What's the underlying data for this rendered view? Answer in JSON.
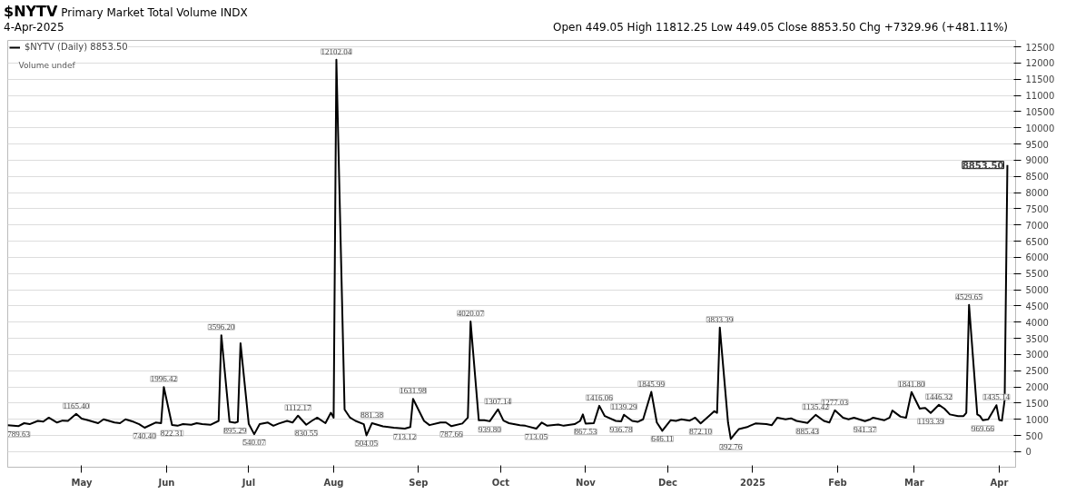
{
  "chart_data": {
    "type": "line",
    "title": "$NYTV",
    "subtitle": "Primary Market Total Volume INDX",
    "annotations": [
      "4-Apr-2025",
      "Volume undef",
      "Open 449.05  High 11812.25  Low 449.05  Close 8853.50  Chg +7329.96 (+481.11%)"
    ],
    "x": [
      "2024-04-04",
      "2024-04-08",
      "2024-04-10",
      "2024-04-12",
      "2024-04-15",
      "2024-04-17",
      "2024-04-19",
      "2024-04-22",
      "2024-04-24",
      "2024-04-26",
      "2024-04-29",
      "2024-05-01",
      "2024-05-03",
      "2024-05-07",
      "2024-05-09",
      "2024-05-13",
      "2024-05-15",
      "2024-05-17",
      "2024-05-20",
      "2024-05-22",
      "2024-05-24",
      "2024-05-28",
      "2024-05-30",
      "2024-05-31",
      "2024-06-03",
      "2024-06-05",
      "2024-06-07",
      "2024-06-10",
      "2024-06-12",
      "2024-06-14",
      "2024-06-17",
      "2024-06-20",
      "2024-06-21",
      "2024-06-24",
      "2024-06-26",
      "2024-06-27",
      "2024-06-28",
      "2024-07-01",
      "2024-07-03",
      "2024-07-05",
      "2024-07-08",
      "2024-07-10",
      "2024-07-12",
      "2024-07-15",
      "2024-07-17",
      "2024-07-19",
      "2024-07-22",
      "2024-07-24",
      "2024-07-26",
      "2024-07-29",
      "2024-07-31",
      "2024-08-01",
      "2024-08-02",
      "2024-08-05",
      "2024-08-07",
      "2024-08-09",
      "2024-08-12",
      "2024-08-13",
      "2024-08-15",
      "2024-08-19",
      "2024-08-21",
      "2024-08-23",
      "2024-08-27",
      "2024-08-29",
      "2024-08-30",
      "2024-09-03",
      "2024-09-05",
      "2024-09-09",
      "2024-09-11",
      "2024-09-13",
      "2024-09-17",
      "2024-09-19",
      "2024-09-20",
      "2024-09-23",
      "2024-09-25",
      "2024-09-27",
      "2024-09-30",
      "2024-10-02",
      "2024-10-04",
      "2024-10-08",
      "2024-10-10",
      "2024-10-14",
      "2024-10-16",
      "2024-10-18",
      "2024-10-22",
      "2024-10-24",
      "2024-10-28",
      "2024-10-30",
      "2024-10-31",
      "2024-11-01",
      "2024-11-04",
      "2024-11-06",
      "2024-11-08",
      "2024-11-12",
      "2024-11-14",
      "2024-11-15",
      "2024-11-18",
      "2024-11-20",
      "2024-11-22",
      "2024-11-25",
      "2024-11-27",
      "2024-11-29",
      "2024-12-02",
      "2024-12-04",
      "2024-12-06",
      "2024-12-09",
      "2024-12-11",
      "2024-12-13",
      "2024-12-16",
      "2024-12-18",
      "2024-12-19",
      "2024-12-20",
      "2024-12-23",
      "2024-12-24",
      "2024-12-26",
      "2024-12-27",
      "2024-12-30",
      "2024-12-31",
      "2025-01-02",
      "2025-01-06",
      "2025-01-08",
      "2025-01-10",
      "2025-01-13",
      "2025-01-15",
      "2025-01-17",
      "2025-01-21",
      "2025-01-24",
      "2025-01-27",
      "2025-01-29",
      "2025-01-31",
      "2025-02-03",
      "2025-02-05",
      "2025-02-07",
      "2025-02-11",
      "2025-02-13",
      "2025-02-14",
      "2025-02-18",
      "2025-02-20",
      "2025-02-21",
      "2025-02-24",
      "2025-02-26",
      "2025-02-28",
      "2025-03-03",
      "2025-03-05",
      "2025-03-07",
      "2025-03-10",
      "2025-03-12",
      "2025-03-14",
      "2025-03-17",
      "2025-03-19",
      "2025-03-20",
      "2025-03-21",
      "2025-03-24",
      "2025-03-25",
      "2025-03-26",
      "2025-03-28",
      "2025-03-31",
      "2025-04-01",
      "2025-04-02",
      "2025-04-03",
      "2025-04-04"
    ],
    "series": [
      {
        "name": "$NYTV (Daily) 8853.50",
        "color": "#000000",
        "values": [
          820,
          789.63,
          880,
          850,
          950,
          930,
          1050,
          900,
          960,
          950,
          1165.4,
          1020,
          980,
          880,
          1000,
          900,
          880,
          1000,
          920,
          850,
          740.4,
          900,
          880,
          1996.42,
          822.31,
          800,
          850,
          830,
          880,
          850,
          830,
          950,
          3596.2,
          920,
          895.29,
          920,
          3350,
          860,
          540.07,
          850,
          900,
          800,
          870,
          950,
          900,
          1112.17,
          830.55,
          950,
          1050,
          880,
          1200,
          1050,
          12102.04,
          1300,
          1050,
          950,
          850,
          504.05,
          881.38,
          780,
          760,
          740,
          713.12,
          760,
          1631.98,
          950,
          820,
          900,
          900,
          787.66,
          870,
          1050,
          4020.07,
          970,
          970,
          939.8,
          1307.14,
          960,
          880,
          820,
          800,
          713.05,
          900,
          800,
          840,
          800,
          850,
          950,
          1150,
          867.53,
          880,
          1416.06,
          1100,
          950,
          936.78,
          1139.29,
          950,
          920,
          1000,
          1845.99,
          900,
          646.11,
          970,
          950,
          1000,
          960,
          1050,
          872.1,
          1100,
          1250,
          1200,
          3833.39,
          900,
          392.76,
          600,
          700,
          760,
          800,
          870,
          850,
          820,
          1050,
          1000,
          1030,
          950,
          885.43,
          1135.42,
          950,
          900,
          1277.03,
          1050,
          1000,
          1050,
          941.37,
          1000,
          1050,
          970,
          1050,
          1270,
          1080,
          1050,
          1841.8,
          1330,
          1350,
          1193.39,
          1446.32,
          1330,
          1150,
          1100,
          1100,
          1200,
          4529.65,
          1150,
          1100,
          969.66,
          1000,
          1435.14,
          980,
          960,
          1600,
          8853.5
        ],
        "value_labels": [
          null,
          "789.63",
          null,
          null,
          null,
          null,
          null,
          null,
          null,
          null,
          "1165.40",
          null,
          null,
          null,
          null,
          null,
          null,
          null,
          null,
          null,
          "740.40",
          null,
          null,
          "1996.42",
          "822.31",
          null,
          null,
          null,
          null,
          null,
          null,
          null,
          "3596.20",
          null,
          "895.29",
          null,
          null,
          null,
          "540.07",
          null,
          null,
          null,
          null,
          null,
          null,
          "1112.17",
          "830.55",
          null,
          null,
          null,
          null,
          null,
          "12102.04",
          null,
          null,
          null,
          null,
          "504.05",
          "881.38",
          null,
          null,
          null,
          "713.12",
          null,
          "1631.98",
          null,
          null,
          null,
          null,
          "787.66",
          null,
          null,
          "4020.07",
          null,
          null,
          "939.80",
          "1307.14",
          null,
          null,
          null,
          null,
          "713.05",
          null,
          null,
          null,
          null,
          null,
          null,
          null,
          "867.53",
          null,
          "1416.06",
          null,
          null,
          "936.78",
          "1139.29",
          null,
          null,
          null,
          "1845.99",
          null,
          "646.11",
          null,
          null,
          null,
          null,
          null,
          "872.10",
          null,
          null,
          null,
          "3833.39",
          null,
          "392.76",
          null,
          null,
          null,
          null,
          null,
          null,
          null,
          null,
          null,
          null,
          null,
          "885.43",
          "1135.42",
          null,
          null,
          "1277.03",
          null,
          null,
          null,
          "941.37",
          null,
          null,
          null,
          null,
          null,
          null,
          null,
          "1841.80",
          null,
          null,
          "1193.39",
          "1446.32",
          null,
          null,
          null,
          null,
          null,
          "4529.65",
          null,
          null,
          "969.66",
          null,
          "1435.14",
          null,
          null,
          null,
          "8853.50"
        ]
      }
    ],
    "xlim": [
      "2024-04-04",
      "2025-04-07"
    ],
    "xticks": [
      {
        "value": "2024-05-01",
        "label": "May"
      },
      {
        "value": "2024-06-01",
        "label": "Jun"
      },
      {
        "value": "2024-07-01",
        "label": "Jul"
      },
      {
        "value": "2024-08-01",
        "label": "Aug"
      },
      {
        "value": "2024-09-01",
        "label": "Sep"
      },
      {
        "value": "2024-10-01",
        "label": "Oct"
      },
      {
        "value": "2024-11-01",
        "label": "Nov"
      },
      {
        "value": "2024-12-01",
        "label": "Dec"
      },
      {
        "value": "2025-01-01",
        "label": "2025"
      },
      {
        "value": "2025-02-01",
        "label": "Feb"
      },
      {
        "value": "2025-03-01",
        "label": "Mar"
      },
      {
        "value": "2025-04-01",
        "label": "Apr"
      }
    ],
    "ylim": [
      -480,
      12700
    ],
    "yticks": [
      0,
      500,
      1000,
      1500,
      2000,
      2500,
      3000,
      3500,
      4000,
      4500,
      5000,
      5500,
      6000,
      6500,
      7000,
      7500,
      8000,
      8500,
      9000,
      9500,
      10000,
      10500,
      11000,
      11500,
      12000,
      12500
    ],
    "grid": true,
    "legend": "top left",
    "marker": "none",
    "line_style": "solid"
  }
}
